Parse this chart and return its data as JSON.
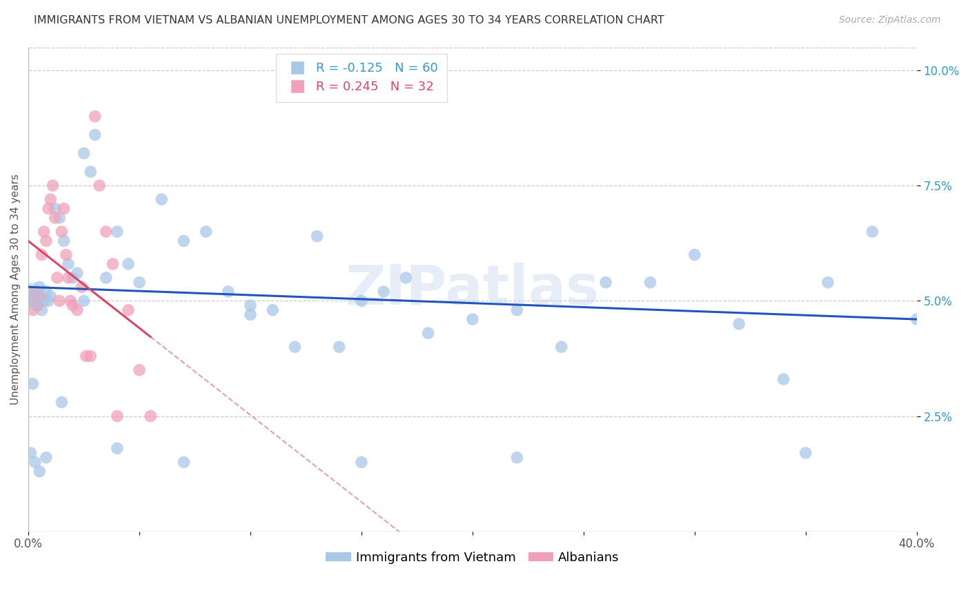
{
  "title": "IMMIGRANTS FROM VIETNAM VS ALBANIAN UNEMPLOYMENT AMONG AGES 30 TO 34 YEARS CORRELATION CHART",
  "source": "Source: ZipAtlas.com",
  "ylabel": "Unemployment Among Ages 30 to 34 years",
  "xlim": [
    0.0,
    0.4
  ],
  "ylim": [
    0.0,
    0.105
  ],
  "yticks": [
    0.025,
    0.05,
    0.075,
    0.1
  ],
  "xtick_positions": [
    0.0,
    0.05,
    0.1,
    0.15,
    0.2,
    0.25,
    0.3,
    0.35,
    0.4
  ],
  "xtick_labels_show": {
    "0.0": "0.0%",
    "0.40": "40.0%"
  },
  "background_color": "#ffffff",
  "grid_color": "#cccccc",
  "blue_color": "#a8c8e8",
  "blue_trend_color": "#2255bb",
  "pink_color": "#f0a0b8",
  "pink_trend_color": "#dd4466",
  "pink_dash_color": "#dd8899",
  "watermark": "ZIPatlas",
  "blue_R": -0.125,
  "blue_N": 60,
  "pink_R": 0.245,
  "pink_N": 32,
  "blue_x": [
    0.001,
    0.002,
    0.003,
    0.004,
    0.005,
    0.006,
    0.007,
    0.008,
    0.009,
    0.01,
    0.012,
    0.014,
    0.016,
    0.018,
    0.02,
    0.022,
    0.025,
    0.028,
    0.03,
    0.035,
    0.04,
    0.045,
    0.05,
    0.06,
    0.07,
    0.08,
    0.09,
    0.1,
    0.11,
    0.12,
    0.13,
    0.14,
    0.15,
    0.16,
    0.17,
    0.18,
    0.2,
    0.22,
    0.24,
    0.26,
    0.28,
    0.3,
    0.32,
    0.34,
    0.36,
    0.38,
    0.4,
    0.001,
    0.002,
    0.003,
    0.005,
    0.008,
    0.015,
    0.025,
    0.04,
    0.07,
    0.1,
    0.15,
    0.22,
    0.35
  ],
  "blue_y": [
    0.052,
    0.05,
    0.051,
    0.049,
    0.053,
    0.048,
    0.05,
    0.052,
    0.05,
    0.051,
    0.07,
    0.068,
    0.063,
    0.058,
    0.055,
    0.056,
    0.082,
    0.078,
    0.086,
    0.055,
    0.065,
    0.058,
    0.054,
    0.072,
    0.063,
    0.065,
    0.052,
    0.047,
    0.048,
    0.04,
    0.064,
    0.04,
    0.05,
    0.052,
    0.055,
    0.043,
    0.046,
    0.048,
    0.04,
    0.054,
    0.054,
    0.06,
    0.045,
    0.033,
    0.054,
    0.065,
    0.046,
    0.017,
    0.032,
    0.015,
    0.013,
    0.016,
    0.028,
    0.05,
    0.018,
    0.015,
    0.049,
    0.015,
    0.016,
    0.017
  ],
  "pink_x": [
    0.001,
    0.002,
    0.003,
    0.004,
    0.005,
    0.006,
    0.007,
    0.008,
    0.009,
    0.01,
    0.011,
    0.012,
    0.013,
    0.014,
    0.015,
    0.016,
    0.017,
    0.018,
    0.019,
    0.02,
    0.022,
    0.024,
    0.026,
    0.028,
    0.03,
    0.032,
    0.035,
    0.038,
    0.04,
    0.045,
    0.05,
    0.055
  ],
  "pink_y": [
    0.05,
    0.048,
    0.052,
    0.049,
    0.051,
    0.06,
    0.065,
    0.063,
    0.07,
    0.072,
    0.075,
    0.068,
    0.055,
    0.05,
    0.065,
    0.07,
    0.06,
    0.055,
    0.05,
    0.049,
    0.048,
    0.053,
    0.038,
    0.038,
    0.09,
    0.075,
    0.065,
    0.058,
    0.025,
    0.048,
    0.035,
    0.025
  ],
  "title_fontsize": 11.5,
  "ylabel_fontsize": 11,
  "tick_fontsize": 12,
  "source_fontsize": 10,
  "legend_fontsize": 13
}
